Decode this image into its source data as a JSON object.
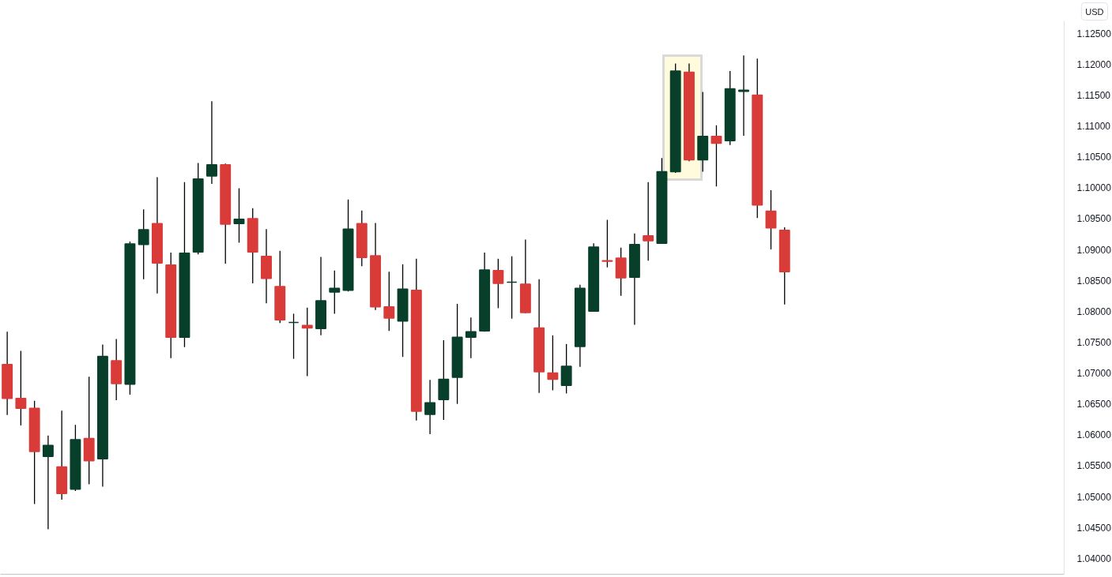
{
  "chart_data": {
    "type": "candlestick",
    "ylabel": "USD",
    "categories": [
      null,
      null,
      null,
      null,
      null,
      null,
      null,
      null,
      null,
      null,
      null,
      null,
      null,
      null,
      null,
      null,
      null,
      null,
      null,
      null,
      null,
      null,
      null,
      null,
      null,
      null,
      null,
      null,
      null,
      null,
      null,
      null,
      null,
      null,
      null,
      null,
      null,
      null,
      null,
      null,
      null,
      null,
      null,
      null,
      null,
      null,
      null,
      null,
      null,
      null,
      null,
      null,
      null,
      null,
      null,
      null,
      null,
      null,
      null,
      null,
      null,
      null,
      null,
      null,
      null,
      null,
      null,
      null,
      null,
      null,
      null,
      null,
      null,
      null,
      null,
      null,
      null,
      null
    ],
    "ohlc": [
      [
        1.0714,
        1.0767,
        1.0632,
        1.0659
      ],
      [
        1.0659,
        1.0736,
        1.0615,
        1.0643
      ],
      [
        1.0643,
        1.0655,
        1.0488,
        1.0573
      ],
      [
        1.0565,
        1.0599,
        1.0447,
        1.0583
      ],
      [
        1.0548,
        1.0639,
        1.0495,
        1.0505
      ],
      [
        1.0512,
        1.0616,
        1.0509,
        1.0592
      ],
      [
        1.0594,
        1.0694,
        1.052,
        1.0558
      ],
      [
        1.0561,
        1.0746,
        1.0516,
        1.0727
      ],
      [
        1.072,
        1.0755,
        1.0656,
        1.0683
      ],
      [
        1.0682,
        1.0913,
        1.0665,
        1.0909
      ],
      [
        1.0908,
        1.0965,
        1.0852,
        1.0932
      ],
      [
        1.0942,
        1.1017,
        1.0829,
        1.0878
      ],
      [
        1.0875,
        1.0895,
        1.0724,
        1.0758
      ],
      [
        1.0758,
        1.1009,
        1.0742,
        1.0894
      ],
      [
        1.0896,
        1.104,
        1.0892,
        1.1014
      ],
      [
        1.1019,
        1.114,
        1.1006,
        1.1037
      ],
      [
        1.1037,
        1.1039,
        1.0877,
        1.0941
      ],
      [
        1.0942,
        1.0999,
        1.0911,
        1.0949
      ],
      [
        1.095,
        1.0967,
        1.0845,
        1.0896
      ],
      [
        1.0889,
        1.0933,
        1.0813,
        1.0853
      ],
      [
        1.084,
        1.0898,
        1.0781,
        1.0786
      ],
      [
        1.0782,
        1.0796,
        1.0723,
        1.0782
      ],
      [
        1.0777,
        1.0806,
        1.0695,
        1.0773
      ],
      [
        1.0772,
        1.0888,
        1.0761,
        1.0817
      ],
      [
        1.0831,
        1.0866,
        1.0796,
        1.0837
      ],
      [
        1.0834,
        1.0981,
        1.0832,
        1.0933
      ],
      [
        1.0942,
        1.0963,
        1.0873,
        1.0887
      ],
      [
        1.089,
        1.0943,
        1.0802,
        1.0807
      ],
      [
        1.0807,
        1.0864,
        1.0768,
        1.0789
      ],
      [
        1.0784,
        1.0876,
        1.0726,
        1.0836
      ],
      [
        1.0834,
        1.0885,
        1.0623,
        1.0638
      ],
      [
        1.0633,
        1.0689,
        1.0601,
        1.0652
      ],
      [
        1.0657,
        1.0753,
        1.0624,
        1.069
      ],
      [
        1.0693,
        1.0812,
        1.065,
        1.0758
      ],
      [
        1.0758,
        1.079,
        1.0724,
        1.0767
      ],
      [
        1.0768,
        1.0895,
        1.0767,
        1.0867
      ],
      [
        1.0866,
        1.0885,
        1.0805,
        1.0845
      ],
      [
        1.0847,
        1.0889,
        1.0788,
        1.0847
      ],
      [
        1.0844,
        1.0916,
        1.0797,
        1.0798
      ],
      [
        1.0773,
        1.0852,
        1.0668,
        1.0702
      ],
      [
        1.07,
        1.0761,
        1.0672,
        1.069
      ],
      [
        1.068,
        1.0747,
        1.0667,
        1.0711
      ],
      [
        1.0743,
        1.0843,
        1.071,
        1.0837
      ],
      [
        1.08,
        1.091,
        1.0799,
        1.0904
      ],
      [
        1.0882,
        1.0948,
        1.0871,
        1.0881
      ],
      [
        1.0886,
        1.0903,
        1.0825,
        1.0854
      ],
      [
        1.0855,
        1.0926,
        1.0778,
        1.0908
      ],
      [
        1.0922,
        1.1009,
        1.0882,
        1.0914
      ],
      [
        1.091,
        1.1048,
        1.0909,
        1.1026
      ],
      [
        1.1026,
        1.1201,
        1.1024,
        1.1189
      ],
      [
        1.1187,
        1.1201,
        1.1043,
        1.1045
      ],
      [
        1.1045,
        1.1155,
        1.1026,
        1.1083
      ],
      [
        1.1083,
        1.1101,
        1.1002,
        1.1072
      ],
      [
        1.1076,
        1.1189,
        1.1069,
        1.116
      ],
      [
        1.1156,
        1.1214,
        1.1084,
        1.1158
      ],
      [
        1.115,
        1.1209,
        1.0951,
        1.0972
      ],
      [
        1.0962,
        1.0996,
        1.09,
        1.0935
      ],
      [
        1.0931,
        1.0936,
        1.0811,
        1.0864
      ],
      null,
      null,
      null,
      null,
      null,
      null,
      null,
      null,
      null,
      null,
      null,
      null,
      null,
      null,
      null,
      null,
      null,
      null,
      null,
      null
    ],
    "colors": [
      "#d83b38",
      "#d83b38",
      "#d83b38",
      "#083f2a",
      "#d83b38",
      "#083f2a",
      "#d83b38",
      "#083f2a",
      "#d83b38",
      "#083f2a",
      "#083f2a",
      "#d83b38",
      "#d83b38",
      "#083f2a",
      "#083f2a",
      "#083f2a",
      "#d83b38",
      "#083f2a",
      "#d83b38",
      "#d83b38",
      "#d83b38",
      "#083f2a",
      "#d83b38",
      "#083f2a",
      "#083f2a",
      "#083f2a",
      "#d83b38",
      "#d83b38",
      "#d83b38",
      "#083f2a",
      "#d83b38",
      "#083f2a",
      "#083f2a",
      "#083f2a",
      "#083f2a",
      "#083f2a",
      "#d83b38",
      "#083f2a",
      "#d83b38",
      "#d83b38",
      "#d83b38",
      "#083f2a",
      "#083f2a",
      "#083f2a",
      "#d83b38",
      "#d83b38",
      "#083f2a",
      "#d83b38",
      "#083f2a",
      "#083f2a",
      "#d83b38",
      "#083f2a",
      "#d83b38",
      "#083f2a",
      "#083f2a",
      "#d83b38",
      "#d83b38",
      "#d83b38",
      null,
      null,
      null,
      null,
      null,
      null,
      null,
      null,
      null,
      null,
      null,
      null,
      null,
      null,
      null,
      null,
      null,
      null,
      null,
      null
    ],
    "ylim": [
      1.0373,
      1.127
    ],
    "yticks": [
      {
        "value": 1.04,
        "label": "1.04000"
      },
      {
        "value": 1.045,
        "label": "1.04500"
      },
      {
        "value": 1.05,
        "label": "1.05000"
      },
      {
        "value": 1.055,
        "label": "1.05500"
      },
      {
        "value": 1.06,
        "label": "1.06000"
      },
      {
        "value": 1.065,
        "label": "1.06500"
      },
      {
        "value": 1.07,
        "label": "1.07000"
      },
      {
        "value": 1.075,
        "label": "1.07500"
      },
      {
        "value": 1.08,
        "label": "1.08000"
      },
      {
        "value": 1.085,
        "label": "1.08500"
      },
      {
        "value": 1.09,
        "label": "1.09000"
      },
      {
        "value": 1.095,
        "label": "1.09500"
      },
      {
        "value": 1.1,
        "label": "1.10000"
      },
      {
        "value": 1.105,
        "label": "1.10500"
      },
      {
        "value": 1.11,
        "label": "1.11000"
      },
      {
        "value": 1.115,
        "label": "1.11500"
      },
      {
        "value": 1.12,
        "label": "1.12000"
      },
      {
        "value": 1.125,
        "label": "1.12500"
      }
    ],
    "grid": false
  }
}
